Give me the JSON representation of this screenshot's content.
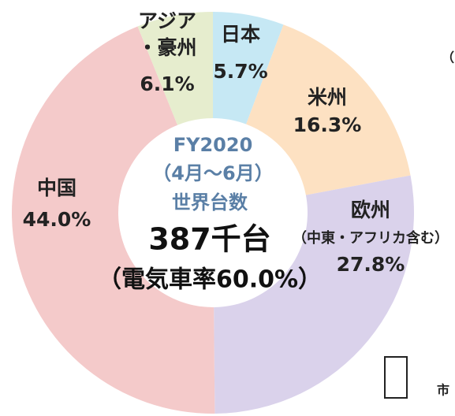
{
  "chart_data": {
    "type": "donut",
    "categories": [
      "日本",
      "米州",
      "欧州",
      "中国",
      "アジア・豪州"
    ],
    "values": [
      5.7,
      16.3,
      27.8,
      44.0,
      6.1
    ],
    "value_labels": [
      "5.7%",
      "16.3%",
      "27.8%",
      "44.0%",
      "6.1%"
    ],
    "colors": [
      "#c6e8f4",
      "#fde1c2",
      "#dad2eb",
      "#f4caca",
      "#e6edce"
    ],
    "category_notes": {
      "2": "（中東・アフリカ含む）"
    },
    "center_text": [
      "FY2020",
      "（4月～6月）",
      "世界台数",
      "387千台",
      "（電気車率60.0%）"
    ],
    "side_text": [
      "（",
      "市"
    ]
  }
}
